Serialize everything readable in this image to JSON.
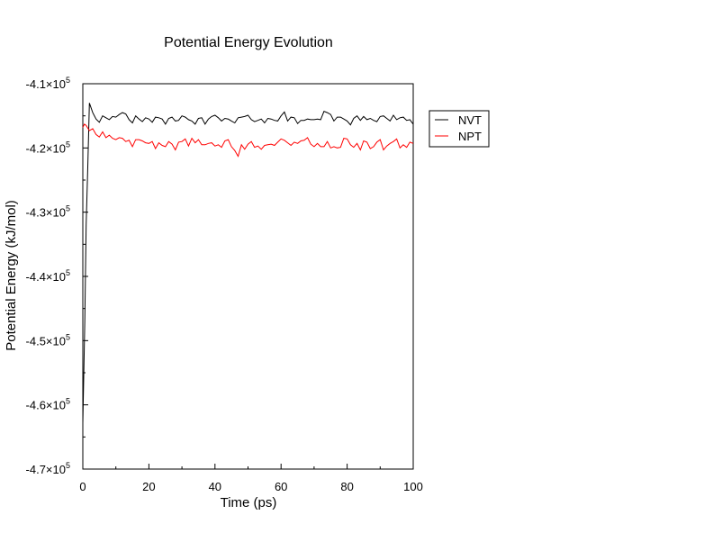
{
  "chart_data": {
    "type": "line",
    "title": "Potential Energy Evolution",
    "xlabel": "Time (ps)",
    "ylabel": "Potential Energy (kJ/mol)",
    "xlim": [
      0,
      100
    ],
    "ylim": [
      -470000,
      -410000
    ],
    "x_ticks": [
      0,
      20,
      40,
      60,
      80,
      100
    ],
    "x_tick_labels": [
      "0",
      "20",
      "40",
      "60",
      "80",
      "100"
    ],
    "y_ticks": [
      -470000,
      -460000,
      -450000,
      -440000,
      -430000,
      -420000,
      -410000
    ],
    "y_tick_labels": [
      {
        "mant": "-4.7",
        "exp": "5"
      },
      {
        "mant": "-4.6",
        "exp": "5"
      },
      {
        "mant": "-4.5",
        "exp": "5"
      },
      {
        "mant": "-4.4",
        "exp": "5"
      },
      {
        "mant": "-4.3",
        "exp": "5"
      },
      {
        "mant": "-4.2",
        "exp": "5"
      },
      {
        "mant": "-4.1",
        "exp": "5"
      }
    ],
    "grid": false,
    "legend_position": "right, upper",
    "series": [
      {
        "name": "NVT",
        "color": "#000000",
        "x": [
          0,
          0.3,
          0.6,
          1,
          1.5,
          2,
          3,
          4,
          5,
          6,
          7,
          8,
          9,
          10,
          11,
          12,
          13,
          14,
          15,
          16,
          17,
          18,
          19,
          20,
          21,
          22,
          23,
          24,
          25,
          26,
          27,
          28,
          29,
          30,
          31,
          32,
          33,
          34,
          35,
          36,
          37,
          38,
          39,
          40,
          41,
          42,
          43,
          44,
          45,
          46,
          47,
          48,
          49,
          50,
          51,
          52,
          53,
          54,
          55,
          56,
          57,
          58,
          59,
          60,
          61,
          62,
          63,
          64,
          65,
          66,
          67,
          68,
          69,
          70,
          71,
          72,
          73,
          74,
          75,
          76,
          77,
          78,
          79,
          80,
          81,
          82,
          83,
          84,
          85,
          86,
          87,
          88,
          89,
          90,
          91,
          92,
          93,
          94,
          95,
          96,
          97,
          98,
          99,
          100
        ],
        "y": [
          -462800,
          -455000,
          -447000,
          -432000,
          -423000,
          -413000,
          -414500,
          -415500,
          -416000,
          -415000,
          -415300,
          -415600,
          -415100,
          -415200,
          -414800,
          -414500,
          -414700,
          -415600,
          -416100,
          -415000,
          -415500,
          -415900,
          -415300,
          -415500,
          -416000,
          -415200,
          -415300,
          -415500,
          -416300,
          -415400,
          -415200,
          -415800,
          -415700,
          -415000,
          -415200,
          -415600,
          -415800,
          -416300,
          -415400,
          -415300,
          -416300,
          -415500,
          -415100,
          -414900,
          -415300,
          -415800,
          -415400,
          -415500,
          -415800,
          -416100,
          -415300,
          -415200,
          -415100,
          -414900,
          -415600,
          -415900,
          -415700,
          -415500,
          -416100,
          -415400,
          -415500,
          -415700,
          -415800,
          -415000,
          -414400,
          -415800,
          -415200,
          -415300,
          -416200,
          -415700,
          -415700,
          -415500,
          -415600,
          -415600,
          -415500,
          -415600,
          -414300,
          -414500,
          -414800,
          -415800,
          -415200,
          -415200,
          -415500,
          -415800,
          -416400,
          -415400,
          -415000,
          -415700,
          -415100,
          -415600,
          -415400,
          -415700,
          -415900,
          -415100,
          -415000,
          -415400,
          -415800,
          -414900,
          -415600,
          -415300,
          -415200,
          -415700,
          -415600,
          -416300
        ]
      },
      {
        "name": "NPT",
        "color": "#ff0000",
        "x": [
          0,
          0.5,
          1,
          2,
          3,
          4,
          5,
          6,
          7,
          8,
          9,
          10,
          11,
          12,
          13,
          14,
          15,
          16,
          17,
          18,
          19,
          20,
          21,
          22,
          23,
          24,
          25,
          26,
          27,
          28,
          29,
          30,
          31,
          32,
          33,
          34,
          35,
          36,
          37,
          38,
          39,
          40,
          41,
          42,
          43,
          44,
          45,
          46,
          47,
          48,
          49,
          50,
          51,
          52,
          53,
          54,
          55,
          56,
          57,
          58,
          59,
          60,
          61,
          62,
          63,
          64,
          65,
          66,
          67,
          68,
          69,
          70,
          71,
          72,
          73,
          74,
          75,
          76,
          77,
          78,
          79,
          80,
          81,
          82,
          83,
          84,
          85,
          86,
          87,
          88,
          89,
          90,
          91,
          92,
          93,
          94,
          95,
          96,
          97,
          98,
          99,
          100
        ],
        "y": [
          -416800,
          -416300,
          -416500,
          -417300,
          -417000,
          -417900,
          -418300,
          -417500,
          -418400,
          -418000,
          -418500,
          -418700,
          -418400,
          -418500,
          -419000,
          -418800,
          -419800,
          -418700,
          -418700,
          -418900,
          -419200,
          -419300,
          -419000,
          -420100,
          -419200,
          -419600,
          -419800,
          -419000,
          -419400,
          -420300,
          -419100,
          -419000,
          -418600,
          -419700,
          -418500,
          -419200,
          -418700,
          -419500,
          -419500,
          -419300,
          -419200,
          -419700,
          -419500,
          -419900,
          -418900,
          -418700,
          -419800,
          -420400,
          -421300,
          -419500,
          -420200,
          -419400,
          -419000,
          -419900,
          -419700,
          -420200,
          -419600,
          -419500,
          -419400,
          -419600,
          -419100,
          -418600,
          -418800,
          -419200,
          -419600,
          -419100,
          -419300,
          -418900,
          -418800,
          -418400,
          -419400,
          -419800,
          -419300,
          -419800,
          -419800,
          -419000,
          -420000,
          -419800,
          -420000,
          -419900,
          -418500,
          -418600,
          -419500,
          -419900,
          -419300,
          -420300,
          -418900,
          -419100,
          -420100,
          -419800,
          -419100,
          -418700,
          -420300,
          -419700,
          -419300,
          -419000,
          -418600,
          -420000,
          -419500,
          -419900,
          -419100,
          -419300
        ]
      }
    ]
  }
}
